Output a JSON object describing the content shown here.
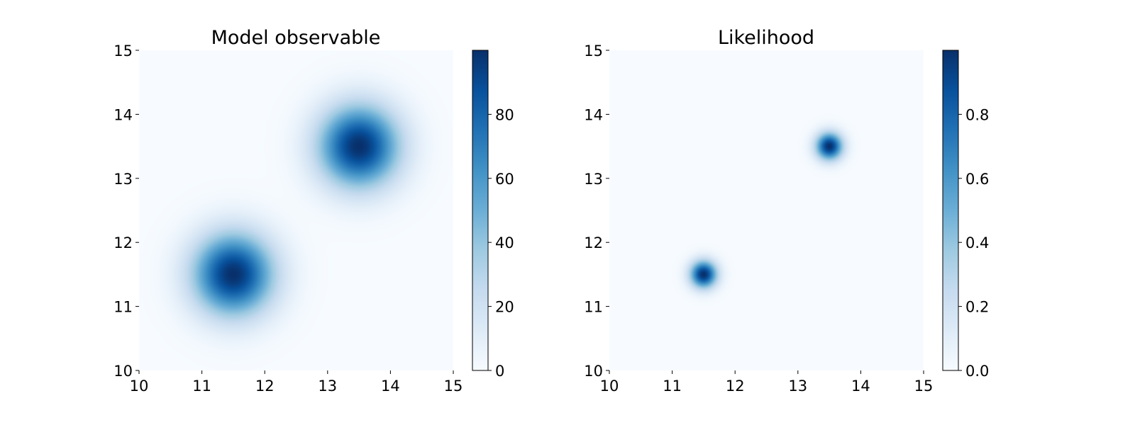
{
  "chart_data": [
    {
      "type": "heatmap",
      "title": "Model observable",
      "xlabel": "",
      "ylabel": "",
      "xlim": [
        10,
        15
      ],
      "ylim": [
        10,
        15
      ],
      "xticks": [
        "10",
        "11",
        "12",
        "13",
        "14",
        "15"
      ],
      "yticks": [
        "10",
        "11",
        "12",
        "13",
        "14",
        "15"
      ],
      "colormap": "Blues",
      "field": {
        "function": "sum of gaussians",
        "peaks": [
          {
            "x": 11.5,
            "y": 11.5,
            "amplitude": 100,
            "sigma": 0.45
          },
          {
            "x": 13.5,
            "y": 13.5,
            "amplitude": 100,
            "sigma": 0.45
          }
        ]
      },
      "colorbar": {
        "range": [
          0,
          100
        ],
        "ticks": [
          "0",
          "20",
          "40",
          "60",
          "80"
        ],
        "tick_values": [
          0,
          20,
          40,
          60,
          80
        ]
      }
    },
    {
      "type": "heatmap",
      "title": "Likelihood",
      "xlabel": "",
      "ylabel": "",
      "xlim": [
        10,
        15
      ],
      "ylim": [
        10,
        15
      ],
      "xticks": [
        "10",
        "11",
        "12",
        "13",
        "14",
        "15"
      ],
      "yticks": [
        "10",
        "11",
        "12",
        "13",
        "14",
        "15"
      ],
      "colormap": "Blues",
      "field": {
        "function": "sum of gaussians",
        "peaks": [
          {
            "x": 11.5,
            "y": 11.5,
            "amplitude": 1.0,
            "sigma": 0.15
          },
          {
            "x": 13.5,
            "y": 13.5,
            "amplitude": 1.0,
            "sigma": 0.15
          }
        ]
      },
      "colorbar": {
        "range": [
          0,
          1.0
        ],
        "ticks": [
          "0.0",
          "0.2",
          "0.4",
          "0.6",
          "0.8"
        ],
        "tick_values": [
          0.0,
          0.2,
          0.4,
          0.6,
          0.8
        ]
      }
    }
  ],
  "colors": {
    "colormap_stops": [
      "#f7fbff",
      "#deebf7",
      "#c6dbef",
      "#9ecae1",
      "#6baed6",
      "#4292c6",
      "#2171b5",
      "#08519c",
      "#08306b"
    ]
  }
}
